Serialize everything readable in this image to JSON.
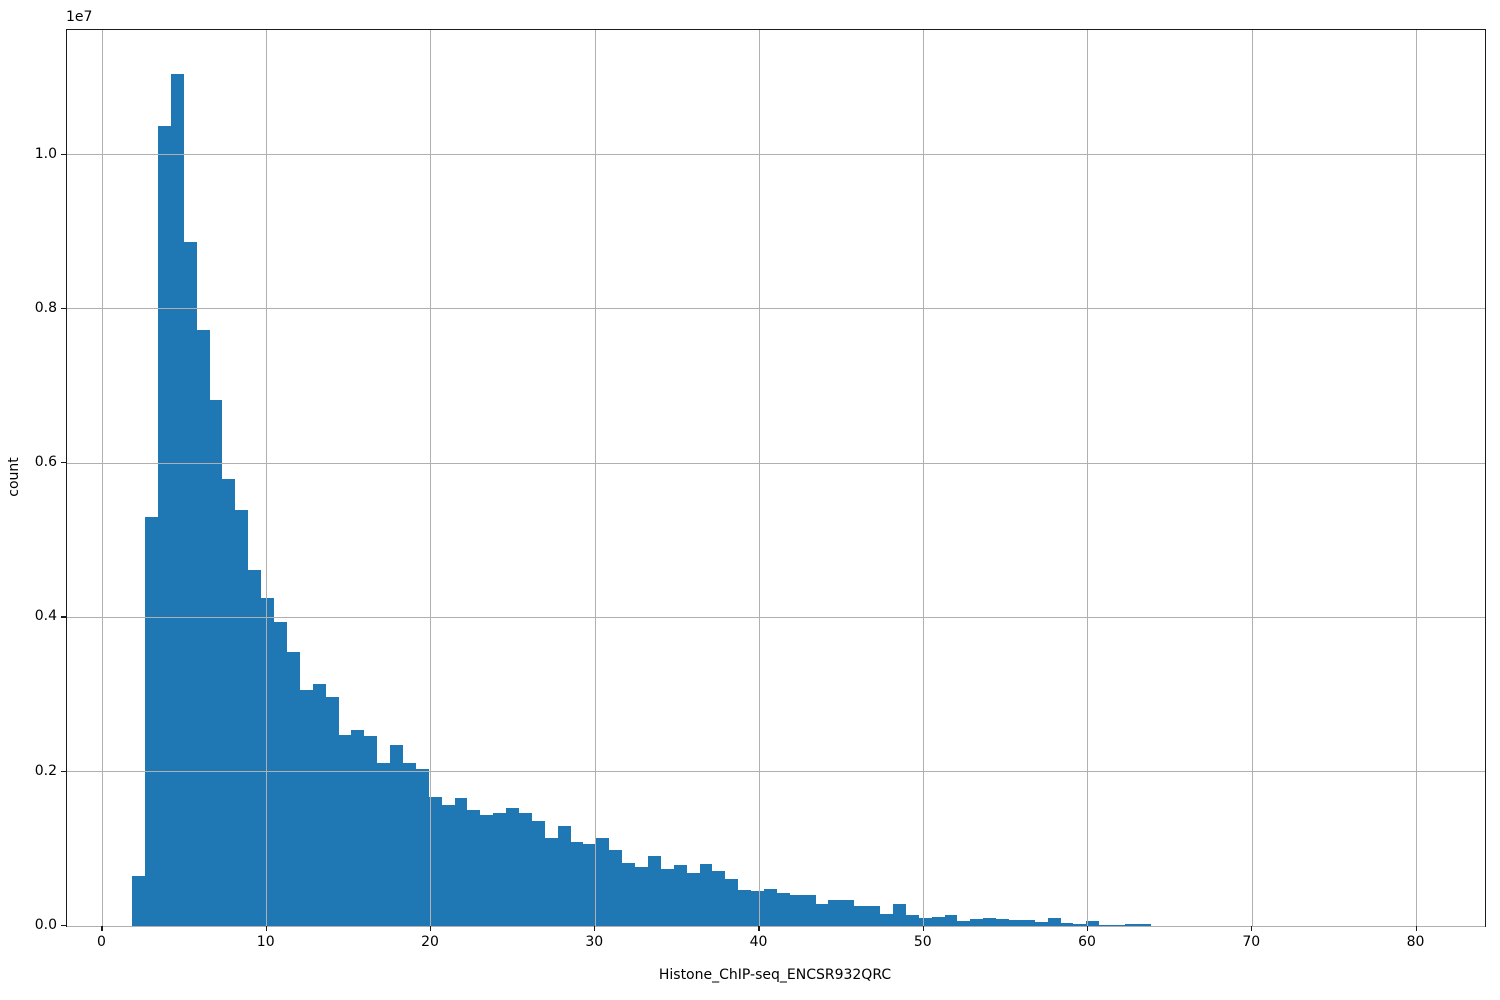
{
  "figure": {
    "offset_text": "1e7",
    "xlabel": "Histone_ChIP-seq_ENCSR932QRC",
    "ylabel": "count"
  },
  "chart_data": {
    "type": "bar",
    "subtype": "histogram",
    "title": "",
    "xlabel": "Histone_ChIP-seq_ENCSR932QRC",
    "ylabel": "count",
    "y_offset_multiplier": "1e7",
    "grid": true,
    "grid_on_top": true,
    "legend": "none",
    "xlim": [
      -2.16,
      84.17
    ],
    "ylim": [
      0,
      11614000
    ],
    "x_ticks": [
      0,
      10,
      20,
      30,
      40,
      50,
      60,
      70,
      80
    ],
    "y_tick_values": [
      0,
      2000000,
      4000000,
      6000000,
      8000000,
      10000000
    ],
    "y_tick_labels": [
      "0.0",
      "0.2",
      "0.4",
      "0.6",
      "0.8",
      "1.0"
    ],
    "bin_start": 1.81,
    "bin_width": 0.785,
    "counts": [
      650000,
      5300000,
      10370000,
      11040000,
      8870000,
      7720000,
      6820000,
      5790000,
      5390000,
      4610000,
      4250000,
      3940000,
      3550000,
      3060000,
      3140000,
      2970000,
      2480000,
      2540000,
      2460000,
      2110000,
      2350000,
      2110000,
      2040000,
      1670000,
      1570000,
      1660000,
      1500000,
      1440000,
      1470000,
      1530000,
      1470000,
      1360000,
      1140000,
      1300000,
      1090000,
      1060000,
      1140000,
      990000,
      820000,
      770000,
      910000,
      740000,
      790000,
      690000,
      800000,
      710000,
      610000,
      470000,
      450000,
      480000,
      430000,
      400000,
      400000,
      290000,
      340000,
      340000,
      260000,
      260000,
      160000,
      280000,
      140000,
      100000,
      120000,
      140000,
      65000,
      90000,
      100000,
      90000,
      80000,
      80000,
      50000,
      100000,
      35000,
      26000,
      65000,
      8000,
      8000,
      20000,
      20000
    ],
    "colors": {
      "bar": "#1f77b4",
      "grid": "#b0b0b0",
      "spine": "#1a1a1a",
      "text": "#000000",
      "background": "#ffffff"
    }
  }
}
